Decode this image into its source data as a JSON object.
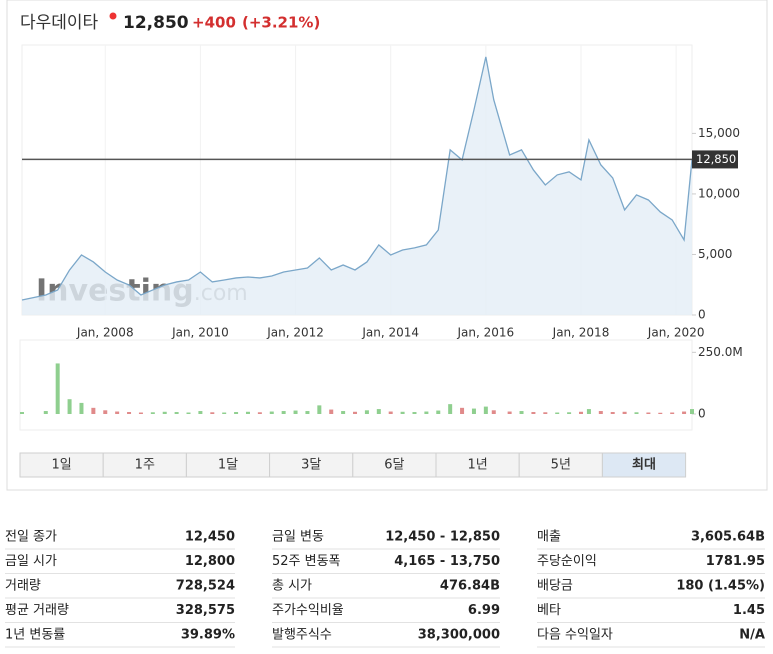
{
  "header": {
    "name": "다우데이타",
    "price": "12,850",
    "change": "+400",
    "change_pct": "(+3.21%)"
  },
  "chart_data": {
    "type": "line",
    "watermark_main": "Investing",
    "watermark_domain": ".com",
    "x": [
      "2006-04",
      "2006-10",
      "2007-01",
      "2007-04",
      "2007-07",
      "2007-10",
      "2008-01",
      "2008-04",
      "2008-07",
      "2008-10",
      "2009-01",
      "2009-04",
      "2009-07",
      "2009-10",
      "2010-01",
      "2010-04",
      "2010-07",
      "2010-10",
      "2011-01",
      "2011-04",
      "2011-07",
      "2011-10",
      "2012-01",
      "2012-04",
      "2012-07",
      "2012-10",
      "2013-01",
      "2013-04",
      "2013-07",
      "2013-10",
      "2014-01",
      "2014-04",
      "2014-07",
      "2014-10",
      "2015-01",
      "2015-04",
      "2015-07",
      "2015-10",
      "2016-01",
      "2016-03",
      "2016-07",
      "2016-10",
      "2017-01",
      "2017-04",
      "2017-07",
      "2017-10",
      "2018-01",
      "2018-03",
      "2018-06",
      "2018-09",
      "2018-12",
      "2019-03",
      "2019-06",
      "2019-09",
      "2019-12",
      "2020-03",
      "2020-05"
    ],
    "series": [
      {
        "name": "다우데이타",
        "color": "#7ba7c9",
        "fill": "#e3edf6",
        "values": [
          1240,
          1650,
          2070,
          3720,
          4960,
          4380,
          3550,
          2890,
          2480,
          1650,
          2070,
          2480,
          2730,
          2890,
          3550,
          2730,
          2890,
          3060,
          3140,
          3060,
          3220,
          3550,
          3720,
          3880,
          4710,
          3720,
          4130,
          3720,
          4380,
          5790,
          4960,
          5370,
          5540,
          5790,
          7020,
          13640,
          12810,
          16940,
          21320,
          17770,
          13220,
          13640,
          11980,
          10740,
          11570,
          11820,
          11160,
          14460,
          12400,
          11320,
          8680,
          9920,
          9500,
          8510,
          7850,
          6200,
          12850
        ]
      }
    ],
    "xlim": [
      "2006-04",
      "2020-05"
    ],
    "xticks": [
      {
        "value": "2008-01",
        "label": "Jan, 2008"
      },
      {
        "value": "2010-01",
        "label": "Jan, 2010"
      },
      {
        "value": "2012-01",
        "label": "Jan, 2012"
      },
      {
        "value": "2014-01",
        "label": "Jan, 2014"
      },
      {
        "value": "2016-01",
        "label": "Jan, 2016"
      },
      {
        "value": "2018-01",
        "label": "Jan, 2018"
      },
      {
        "value": "2020-01",
        "label": "Jan, 2020"
      }
    ],
    "ylim": [
      0,
      22300
    ],
    "yticks": [
      0,
      {
        "value": 5000,
        "label": "5,000"
      },
      {
        "value": 10000,
        "label": "10,000"
      },
      {
        "value": 15000,
        "label": "15,000"
      }
    ],
    "ref_value": 12850,
    "ref_label": "12,850",
    "volume": {
      "up_color": "#8fcf8f",
      "down_color": "#e08a8a",
      "values": [
        8000000,
        12000000,
        205000000,
        60000000,
        45000000,
        25000000,
        15000000,
        10000000,
        8000000,
        6000000,
        7000000,
        9000000,
        8000000,
        6000000,
        12000000,
        7000000,
        6000000,
        8000000,
        9000000,
        7000000,
        10000000,
        12000000,
        14000000,
        12000000,
        35000000,
        18000000,
        12000000,
        9000000,
        15000000,
        20000000,
        10000000,
        9000000,
        8000000,
        10000000,
        14000000,
        40000000,
        25000000,
        22000000,
        30000000,
        15000000,
        10000000,
        12000000,
        8000000,
        7000000,
        6000000,
        7000000,
        9000000,
        20000000,
        12000000,
        8000000,
        9000000,
        7000000,
        6000000,
        5000000,
        6000000,
        10000000,
        20000000
      ],
      "ylim": [
        0,
        300000000
      ],
      "yticks": [
        0,
        {
          "value": 250000000,
          "label": "250.0M"
        }
      ]
    }
  },
  "ranges": [
    "1일",
    "1주",
    "1달",
    "3달",
    "6달",
    "1년",
    "5년",
    "최대"
  ],
  "selected_range": 7,
  "stats": [
    [
      [
        "전일 종가",
        "12,450"
      ],
      [
        "금일 시가",
        "12,800"
      ],
      [
        "거래량",
        "728,524"
      ],
      [
        "평균 거래량",
        "328,575"
      ],
      [
        "1년 변동률",
        "39.89%"
      ]
    ],
    [
      [
        "금일 변동",
        "12,450 - 12,850"
      ],
      [
        "52주 변동폭",
        "4,165 - 13,750"
      ],
      [
        "총 시가",
        "476.84B"
      ],
      [
        "주가수익비율",
        "6.99"
      ],
      [
        "발행주식수",
        "38,300,000"
      ]
    ],
    [
      [
        "매출",
        "3,605.64B"
      ],
      [
        "주당순이익",
        "1781.95"
      ],
      [
        "배당금",
        "180 (1.45%)"
      ],
      [
        "베타",
        "1.45"
      ],
      [
        "다음 수익일자",
        "N/A"
      ]
    ]
  ]
}
